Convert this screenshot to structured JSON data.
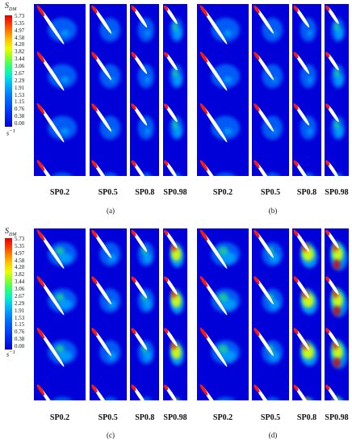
{
  "legend": {
    "symbol": "S",
    "subscript": "DM",
    "unit": "s",
    "unit_exp": "−1",
    "ticks": [
      "5.73",
      "5.35",
      "4.97",
      "4.58",
      "4.20",
      "3.82",
      "3.44",
      "3.06",
      "2.67",
      "2.29",
      "1.91",
      "1.53",
      "1.15",
      "0.76",
      "0.38",
      "0.00"
    ]
  },
  "colormap": [
    "#0000d8",
    "#0040ff",
    "#0078ff",
    "#00b4ff",
    "#00f0c8",
    "#2aff7a",
    "#8aff2a",
    "#e8ff00",
    "#ffc400",
    "#ff7a00",
    "#ff2a00",
    "#e00000"
  ],
  "groups": [
    {
      "label": "(a)",
      "columns": [
        "SP0.2",
        "SP0.5",
        "SP0.8",
        "SP0.98"
      ]
    },
    {
      "label": "(b)",
      "columns": [
        "SP0.2",
        "SP0.5",
        "SP0.8",
        "SP0.98"
      ]
    },
    {
      "label": "(c)",
      "columns": [
        "SP0.2",
        "SP0.5",
        "SP0.8",
        "SP0.98"
      ]
    },
    {
      "label": "(d)",
      "columns": [
        "SP0.2",
        "SP0.5",
        "SP0.8",
        "SP0.98"
      ]
    }
  ]
}
